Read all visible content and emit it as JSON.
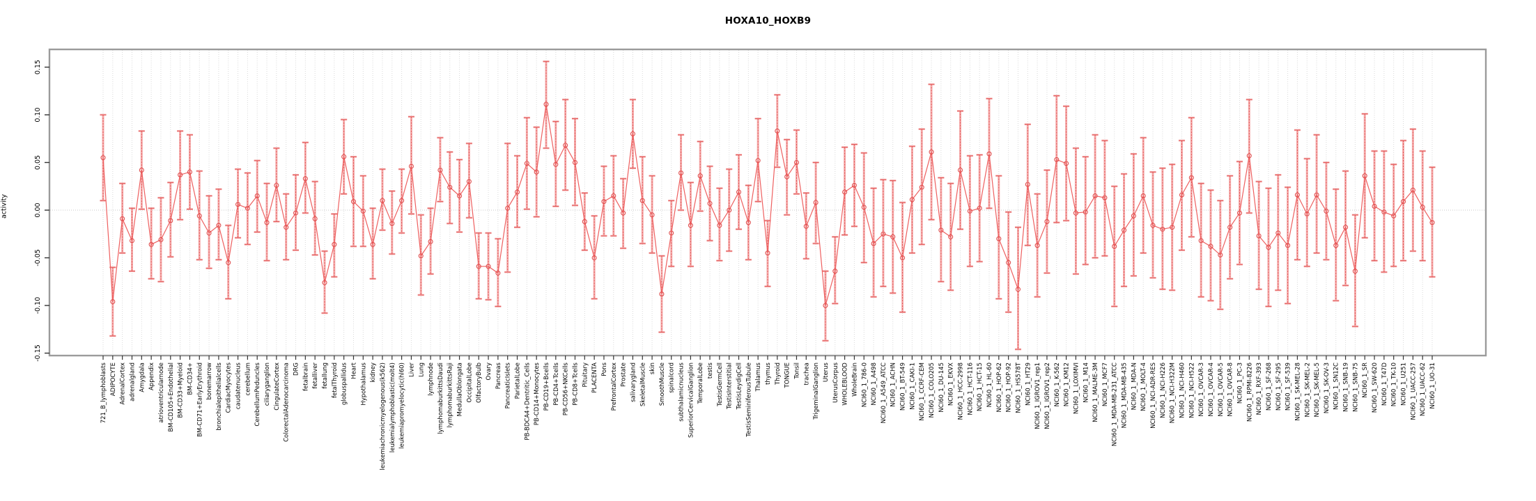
{
  "figure": {
    "title": "HOXA10_HOXB9"
  },
  "chart_data": {
    "type": "line",
    "title": "HOXA10_HOXB9",
    "xlabel": "",
    "ylabel": "activity",
    "ylim": [
      -0.15,
      0.15
    ],
    "grid": "vertical dotted gridline per category; dotted horizontal line at 0",
    "legend": "none",
    "marker": "open-circle",
    "error_bars": true,
    "colors": {
      "line": "#ee5f5f",
      "marker": "#e04f4f",
      "error_bar_light": "#f5abab",
      "error_bar_dark": "#e25c5c",
      "box": "#9b9b9b",
      "grid": "#d9d9d9",
      "tick": "#333333",
      "text": "#000000"
    },
    "yticks": [
      {
        "value": -0.15,
        "label": "-0.15"
      },
      {
        "value": -0.1,
        "label": "-0.10"
      },
      {
        "value": -0.05,
        "label": "-0.05"
      },
      {
        "value": 0.0,
        "label": "0.00"
      },
      {
        "value": 0.05,
        "label": "0.05"
      },
      {
        "value": 0.1,
        "label": "0.10"
      },
      {
        "value": 0.15,
        "label": "0.15"
      }
    ],
    "categories": [
      "721_B_lymphoblasts",
      "ADIPOCYTE",
      "AdrenalCortex",
      "adrenalgland",
      "Amygdala",
      "Appendix",
      "atrioventricularnode",
      "BM-CD105+Endothelial",
      "BM-CD33+Myeloid",
      "BM-CD34+",
      "BM-CD71+EarlyErythroid",
      "bonemarrow",
      "bronchialepithelialcells",
      "CardiacMyocytes",
      "caudatenucleus",
      "cerebellum",
      "CerebellumPeduncles",
      "ciliaryganglion",
      "CingulateCortex",
      "ColorectalAdenocarcinoma",
      "DRG",
      "fetalbrain",
      "fetalliver",
      "fetallung",
      "fetalThyroid",
      "globuspallidus",
      "Heart",
      "Hypothalamus",
      "kidney",
      "leukemiachronicmyelogenous(k562)",
      "leukemialymphoblastic(molt4)",
      "leukemiapromyelocytic(hl60)",
      "Liver",
      "Lung",
      "lymphnode",
      "lymphomaburkittsDaudi",
      "lymphomaburkittsRaji",
      "MedullaOblongata",
      "OccipitalLobe",
      "OlfactoryBulb",
      "Ovary",
      "Pancreas",
      "PancreaticIslets",
      "ParietalLobe",
      "PB-BDCA4+Dentritic_Cells",
      "PB-CD14+Monocytes",
      "PB-CD19+Bcells",
      "PB-CD4+Tcells",
      "PB-CD56+NKCells",
      "PB-CD8+Tcells",
      "Pituitary",
      "PLACENTA",
      "Pons",
      "PrefrontalCortex",
      "Prostate",
      "salivarygland",
      "SkeletalMuscle",
      "skin",
      "SmoothMuscle",
      "spinalcord",
      "subthalamicnucleus",
      "SuperiorCervicalGanglion",
      "TemporalLobe",
      "testis",
      "TestisGermCell",
      "TestisInterstitial",
      "TestisLeydigCell",
      "TestisSeminiferousTubule",
      "Thalamus",
      "thymus",
      "Thyroid",
      "TONGUE",
      "Tonsil",
      "trachea",
      "TrigeminalGanglion",
      "Uterus",
      "UterusCorpus",
      "WHOLEBLOOD",
      "WholeBrain",
      "NCI60_1_786-0",
      "NCI60_1_A498",
      "NCI60_1_A549_ATCC",
      "NCI60_1_ACHN",
      "NCI60_1_BT-549",
      "NCI60_1_CAKI-1",
      "NCI60_1_CCRF-CEM",
      "NCI60_1_COLO205",
      "NCI60_1_DU-145",
      "NCI60_1_EKVX",
      "NCI60_1_HCC-2998",
      "NCI60_1_HCT-116",
      "NCI60_1_HCT-15",
      "NCI60_1_HL-60",
      "NCI60_1_HOP-62",
      "NCI60_1_HOP-92",
      "NCI60_1_HS578T",
      "NCI60_1_HT29",
      "NCI60_1_IGROV1_rep1",
      "NCI60_1_IGROV1_rep2",
      "NCI60_1_K-562",
      "NCI60_1_KM12",
      "NCI60_1_LOXIMVI",
      "NCI60_1_M14",
      "NCI60_1_MALME-3M",
      "NCI60_1_MCF7",
      "NCI60_1_MDA-MB-231_ATCC",
      "NCI60_1_MDA-MB-435",
      "NCI60_1_MDA-N",
      "NCI60_1_MOLT-4",
      "NCI60_1_NCI-ADR-RES",
      "NCI60_1_NCI-H226",
      "NCI60_1_NCI-H322M",
      "NCI60_1_NCI-H460",
      "NCI60_1_NCI-H522",
      "NCI60_1_OVCAR-3",
      "NCI60_1_OVCAR-4",
      "NCI60_1_OVCAR-5",
      "NCI60_1_OVCAR-8",
      "NCI60_1_PC-3",
      "NCI60_1_RPMI-8226",
      "NCI60_1_RXF-393",
      "NCI60_1_SF-268",
      "NCI60_1_SF-295",
      "NCI60_1_SF-539",
      "NCI60_1_SK-MEL-28",
      "NCI60_1_SK-MEL-2",
      "NCI60_1_SK-MEL-5",
      "NCI60_1_SK-OV-3",
      "NCI60_1_SN12C",
      "NCI60_1_SNB-19",
      "NCI60_1_SNB-75",
      "NCI60_1_SR",
      "NCI60_1_SW-620",
      "NCI60_1_T47D",
      "NCI60_1_TK-10",
      "NCI60_1_U251",
      "NCI60_1_UACC-257",
      "NCI60_1_UACC-62",
      "NCI60_1_UO-31"
    ],
    "series": [
      {
        "name": "activity",
        "values": [
          0.055,
          -0.096,
          -0.009,
          -0.032,
          0.042,
          -0.036,
          -0.031,
          -0.011,
          0.037,
          0.04,
          -0.006,
          -0.024,
          -0.016,
          -0.055,
          0.006,
          0.002,
          0.015,
          -0.013,
          0.026,
          -0.018,
          -0.003,
          0.033,
          -0.009,
          -0.076,
          -0.036,
          0.056,
          0.009,
          -0.001,
          -0.036,
          0.01,
          -0.014,
          0.01,
          0.046,
          -0.048,
          -0.033,
          0.042,
          0.024,
          0.015,
          0.03,
          -0.059,
          -0.059,
          -0.066,
          0.002,
          0.019,
          0.049,
          0.04,
          0.111,
          0.048,
          0.068,
          0.05,
          -0.012,
          -0.05,
          0.009,
          0.015,
          -0.003,
          0.08,
          0.01,
          -0.005,
          -0.088,
          -0.024,
          0.039,
          -0.016,
          0.036,
          0.007,
          -0.016,
          0.0,
          0.019,
          -0.013,
          0.052,
          -0.045,
          0.083,
          0.035,
          0.05,
          -0.017,
          0.008,
          -0.1,
          -0.064,
          0.019,
          0.026,
          0.003,
          -0.035,
          -0.025,
          -0.028,
          -0.05,
          0.011,
          0.024,
          0.061,
          -0.021,
          -0.028,
          0.042,
          -0.001,
          0.002,
          0.059,
          -0.03,
          -0.055,
          -0.083,
          0.027,
          -0.037,
          -0.012,
          0.053,
          0.049,
          -0.003,
          -0.002,
          0.015,
          0.013,
          -0.038,
          -0.021,
          -0.006,
          0.015,
          -0.016,
          -0.02,
          -0.018,
          0.016,
          0.034,
          -0.032,
          -0.038,
          -0.047,
          -0.018,
          -0.003,
          0.057,
          -0.027,
          -0.039,
          -0.024,
          -0.037,
          0.016,
          -0.004,
          0.016,
          -0.001,
          -0.037,
          -0.018,
          -0.064,
          0.036,
          0.004,
          -0.002,
          -0.006,
          0.009,
          0.021,
          0.003,
          -0.013
        ]
      },
      {
        "name": "ci_lower",
        "values": [
          0.01,
          -0.132,
          -0.045,
          -0.064,
          0.001,
          -0.072,
          -0.075,
          -0.049,
          -0.01,
          0.001,
          -0.052,
          -0.061,
          -0.052,
          -0.093,
          -0.029,
          -0.036,
          -0.023,
          -0.053,
          -0.012,
          -0.052,
          -0.042,
          -0.003,
          -0.047,
          -0.108,
          -0.07,
          0.017,
          -0.038,
          -0.038,
          -0.072,
          -0.021,
          -0.046,
          -0.024,
          -0.004,
          -0.089,
          -0.067,
          0.009,
          -0.014,
          -0.023,
          -0.008,
          -0.093,
          -0.094,
          -0.101,
          -0.065,
          -0.018,
          0.001,
          -0.007,
          0.065,
          0.004,
          0.021,
          0.005,
          -0.042,
          -0.093,
          -0.027,
          -0.027,
          -0.04,
          0.044,
          -0.035,
          -0.045,
          -0.128,
          -0.059,
          0.0,
          -0.059,
          -0.001,
          -0.032,
          -0.053,
          -0.043,
          -0.02,
          -0.052,
          0.009,
          -0.08,
          0.045,
          -0.005,
          0.017,
          -0.051,
          -0.035,
          -0.137,
          -0.098,
          -0.026,
          -0.017,
          -0.055,
          -0.091,
          -0.08,
          -0.087,
          -0.107,
          -0.045,
          -0.036,
          -0.01,
          -0.075,
          -0.084,
          -0.02,
          -0.059,
          -0.054,
          0.002,
          -0.093,
          -0.107,
          -0.146,
          -0.037,
          -0.091,
          -0.066,
          -0.013,
          -0.011,
          -0.067,
          -0.057,
          -0.05,
          -0.048,
          -0.101,
          -0.08,
          -0.069,
          -0.045,
          -0.071,
          -0.083,
          -0.084,
          -0.042,
          -0.028,
          -0.091,
          -0.095,
          -0.104,
          -0.072,
          -0.057,
          -0.003,
          -0.083,
          -0.101,
          -0.084,
          -0.098,
          -0.052,
          -0.059,
          -0.045,
          -0.052,
          -0.095,
          -0.079,
          -0.122,
          -0.029,
          -0.053,
          -0.065,
          -0.059,
          -0.053,
          -0.043,
          -0.053,
          -0.07
        ]
      },
      {
        "name": "ci_upper",
        "values": [
          0.1,
          -0.06,
          0.028,
          0.002,
          0.083,
          0.002,
          0.013,
          0.029,
          0.083,
          0.079,
          0.041,
          0.015,
          0.022,
          -0.016,
          0.043,
          0.039,
          0.052,
          0.028,
          0.065,
          0.017,
          0.037,
          0.071,
          0.03,
          -0.043,
          -0.004,
          0.095,
          0.056,
          0.036,
          0.002,
          0.043,
          0.02,
          0.043,
          0.098,
          -0.005,
          0.002,
          0.076,
          0.061,
          0.053,
          0.07,
          -0.024,
          -0.024,
          -0.03,
          0.07,
          0.057,
          0.097,
          0.087,
          0.156,
          0.093,
          0.116,
          0.096,
          0.018,
          -0.006,
          0.046,
          0.057,
          0.033,
          0.116,
          0.056,
          0.036,
          -0.048,
          0.01,
          0.079,
          0.029,
          0.072,
          0.046,
          0.023,
          0.043,
          0.058,
          0.026,
          0.096,
          -0.011,
          0.121,
          0.074,
          0.084,
          0.018,
          0.05,
          -0.064,
          -0.028,
          0.066,
          0.069,
          0.06,
          0.023,
          0.032,
          0.031,
          0.008,
          0.067,
          0.085,
          0.132,
          0.034,
          0.028,
          0.104,
          0.057,
          0.058,
          0.117,
          0.036,
          -0.002,
          -0.018,
          0.09,
          0.017,
          0.042,
          0.12,
          0.109,
          0.065,
          0.056,
          0.079,
          0.073,
          0.025,
          0.038,
          0.059,
          0.076,
          0.04,
          0.044,
          0.048,
          0.073,
          0.097,
          0.028,
          0.021,
          0.01,
          0.036,
          0.051,
          0.116,
          0.03,
          0.023,
          0.037,
          0.024,
          0.084,
          0.054,
          0.079,
          0.05,
          0.022,
          0.041,
          -0.005,
          0.101,
          0.062,
          0.062,
          0.048,
          0.073,
          0.085,
          0.062,
          0.045
        ]
      }
    ]
  }
}
